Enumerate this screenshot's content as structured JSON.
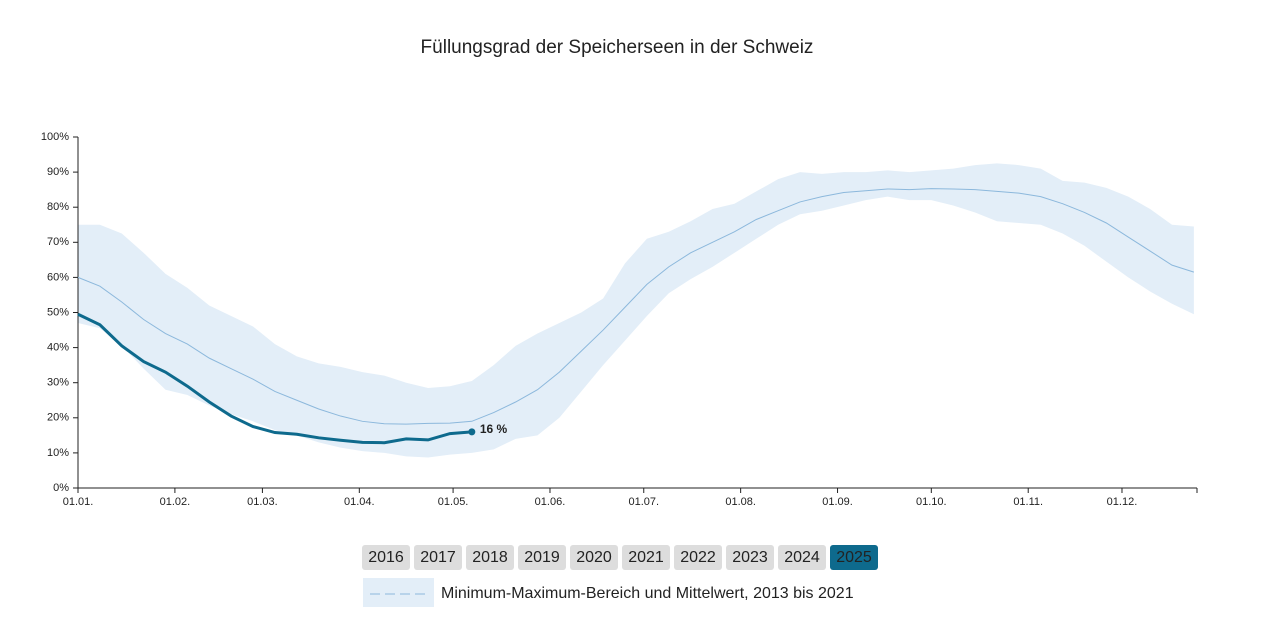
{
  "chart_data": {
    "type": "line",
    "title": "Füllungsgrad der Speicherseen in der Schweiz",
    "x": [
      0,
      7,
      14,
      21,
      28,
      35,
      42,
      49,
      56,
      63,
      70,
      77,
      84,
      91,
      98,
      105,
      112,
      119,
      126,
      133,
      140,
      147,
      154,
      161,
      168,
      175,
      182,
      189,
      196,
      203,
      210,
      217,
      224,
      231,
      238,
      245,
      252,
      259,
      266,
      273,
      280,
      287,
      294,
      301,
      308,
      315,
      322,
      329,
      336,
      343,
      350,
      357
    ],
    "xlim": [
      0,
      358
    ],
    "xticks": [
      {
        "value": 0,
        "label": "01.01."
      },
      {
        "value": 31,
        "label": "01.02."
      },
      {
        "value": 59,
        "label": "01.03."
      },
      {
        "value": 90,
        "label": "01.04."
      },
      {
        "value": 120,
        "label": "01.05."
      },
      {
        "value": 151,
        "label": "01.06."
      },
      {
        "value": 181,
        "label": "01.07."
      },
      {
        "value": 212,
        "label": "01.08."
      },
      {
        "value": 243,
        "label": "01.09."
      },
      {
        "value": 273,
        "label": "01.10."
      },
      {
        "value": 304,
        "label": "01.11."
      },
      {
        "value": 334,
        "label": "01.12."
      }
    ],
    "ylim": [
      0,
      100
    ],
    "yticks": [
      {
        "value": 0,
        "label": "0%"
      },
      {
        "value": 10,
        "label": "10%"
      },
      {
        "value": 20,
        "label": "20%"
      },
      {
        "value": 30,
        "label": "30%"
      },
      {
        "value": 40,
        "label": "40%"
      },
      {
        "value": 50,
        "label": "50%"
      },
      {
        "value": 60,
        "label": "60%"
      },
      {
        "value": 70,
        "label": "70%"
      },
      {
        "value": 80,
        "label": "80%"
      },
      {
        "value": 90,
        "label": "90%"
      },
      {
        "value": 100,
        "label": "100%"
      }
    ],
    "series": [
      {
        "name": "Minimum-Maximum-Bereich und Mittelwert, 2013 bis 2021",
        "color": "#8cb8dc",
        "band_color": "#e3eef8",
        "values": [
          60,
          57.5,
          53,
          48,
          44,
          41,
          37,
          34,
          31,
          27.5,
          25,
          22.5,
          20.5,
          19,
          18.3,
          18.2,
          18.4,
          18.5,
          19,
          21.5,
          24.5,
          28,
          33,
          39,
          45,
          51.5,
          58,
          63,
          67,
          70,
          73,
          76.5,
          79,
          81.5,
          83,
          84.2,
          84.7,
          85.2,
          85,
          85.3,
          85.2,
          85,
          84.5,
          84,
          83,
          81,
          78.5,
          75.5,
          71.5,
          67.5,
          63.5,
          61.5
        ],
        "max": [
          75,
          75,
          72.5,
          67,
          61,
          57,
          52,
          49,
          46,
          41,
          37.5,
          35.5,
          34.5,
          33,
          32,
          30,
          28.5,
          29,
          30.5,
          35,
          40.5,
          44,
          47,
          50,
          54,
          64,
          71,
          73,
          76,
          79.5,
          81,
          84.5,
          88,
          90,
          89.5,
          90,
          90,
          90.5,
          90,
          90.5,
          91,
          92,
          92.5,
          92,
          91,
          87.5,
          87,
          85.5,
          83,
          79.5,
          75,
          74.5
        ],
        "min": [
          47,
          45.5,
          40.5,
          34,
          28,
          26.5,
          23.5,
          21,
          19,
          16.5,
          15,
          13,
          11.5,
          10.5,
          10,
          9,
          8.7,
          9.5,
          10,
          11,
          14,
          15,
          20,
          27.5,
          35,
          42,
          49,
          55.5,
          59.5,
          63,
          67,
          71,
          75,
          78,
          79,
          80.5,
          82,
          83,
          82,
          82,
          80.5,
          78.5,
          76,
          75.5,
          75,
          72.5,
          69,
          64.5,
          60,
          56,
          52.5,
          49.5
        ]
      },
      {
        "name": "2025",
        "color": "#0e6a8d",
        "values": [
          49.5,
          46.5,
          40.5,
          36,
          33,
          29,
          24.5,
          20.5,
          17.5,
          15.8,
          15.3,
          14.3,
          13.6,
          13,
          12.9,
          14,
          13.7,
          15.5,
          16,
          null,
          null,
          null,
          null,
          null,
          null,
          null,
          null,
          null,
          null,
          null,
          null,
          null,
          null,
          null,
          null,
          null,
          null,
          null,
          null,
          null,
          null,
          null,
          null,
          null,
          null,
          null,
          null,
          null,
          null,
          null,
          null,
          null
        ],
        "value_labels": [
          null,
          null,
          null,
          null,
          null,
          null,
          null,
          null,
          null,
          null,
          null,
          null,
          null,
          null,
          null,
          null,
          null,
          null,
          "16 %",
          null,
          null,
          null,
          null,
          null,
          null,
          null,
          null,
          null,
          null,
          null,
          null,
          null,
          null,
          null,
          null,
          null,
          null,
          null,
          null,
          null,
          null,
          null,
          null,
          null,
          null,
          null,
          null,
          null,
          null,
          null,
          null,
          null
        ]
      }
    ],
    "years": [
      "2016",
      "2017",
      "2018",
      "2019",
      "2020",
      "2021",
      "2022",
      "2023",
      "2024",
      "2025"
    ],
    "selected_year_index": 9
  }
}
